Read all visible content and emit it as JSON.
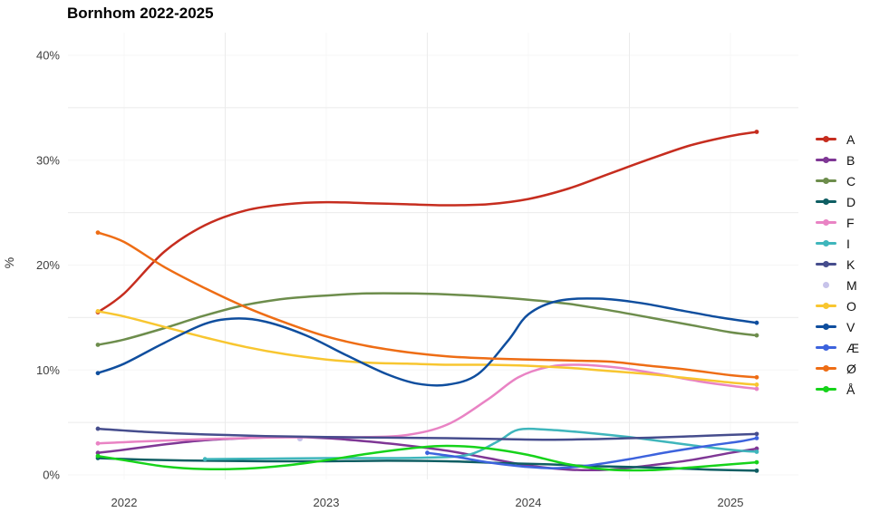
{
  "chart_data": {
    "type": "line",
    "title": "Bornhom 2022-2025",
    "xlabel": "",
    "ylabel": "%",
    "xlim": [
      2021.75,
      2025.33
    ],
    "ylim": [
      0,
      40
    ],
    "grid": "on",
    "legend_position": "right",
    "x_ticks": [
      {
        "value": 2022,
        "label": "2022"
      },
      {
        "value": 2023,
        "label": "2023"
      },
      {
        "value": 2024,
        "label": "2024"
      },
      {
        "value": 2025,
        "label": "2025"
      }
    ],
    "y_ticks": [
      {
        "value": 0,
        "label": "0%"
      },
      {
        "value": 10,
        "label": "10%"
      },
      {
        "value": 20,
        "label": "20%"
      },
      {
        "value": 30,
        "label": "30%"
      },
      {
        "value": 40,
        "label": "40%"
      }
    ],
    "minor_grid_y": [
      5,
      15,
      25,
      35
    ],
    "minor_grid_x": [
      2022.5,
      2023.5,
      2024.5
    ],
    "series": [
      {
        "name": "A",
        "color": "#c62d1f",
        "points": [
          [
            2021.87,
            15.5
          ],
          [
            2022.0,
            17.3
          ],
          [
            2022.2,
            21.3
          ],
          [
            2022.4,
            23.8
          ],
          [
            2022.6,
            25.2
          ],
          [
            2022.8,
            25.8
          ],
          [
            2023.0,
            26.0
          ],
          [
            2023.2,
            25.9
          ],
          [
            2023.4,
            25.8
          ],
          [
            2023.6,
            25.7
          ],
          [
            2023.8,
            25.8
          ],
          [
            2024.0,
            26.3
          ],
          [
            2024.2,
            27.3
          ],
          [
            2024.4,
            28.7
          ],
          [
            2024.6,
            30.1
          ],
          [
            2024.8,
            31.4
          ],
          [
            2025.0,
            32.3
          ],
          [
            2025.13,
            32.7
          ]
        ]
      },
      {
        "name": "B",
        "color": "#7f3795",
        "points": [
          [
            2021.87,
            2.1
          ],
          [
            2022.0,
            2.4
          ],
          [
            2022.2,
            2.9
          ],
          [
            2022.4,
            3.3
          ],
          [
            2022.6,
            3.5
          ],
          [
            2022.8,
            3.6
          ],
          [
            2023.0,
            3.5
          ],
          [
            2023.2,
            3.2
          ],
          [
            2023.4,
            2.8
          ],
          [
            2023.6,
            2.3
          ],
          [
            2023.8,
            1.6
          ],
          [
            2024.0,
            0.9
          ],
          [
            2024.2,
            0.5
          ],
          [
            2024.4,
            0.5
          ],
          [
            2024.6,
            0.9
          ],
          [
            2024.8,
            1.4
          ],
          [
            2025.0,
            2.1
          ],
          [
            2025.13,
            2.5
          ]
        ]
      },
      {
        "name": "C",
        "color": "#6d8d4c",
        "points": [
          [
            2021.87,
            12.4
          ],
          [
            2022.0,
            12.9
          ],
          [
            2022.2,
            14.0
          ],
          [
            2022.4,
            15.2
          ],
          [
            2022.6,
            16.2
          ],
          [
            2022.8,
            16.8
          ],
          [
            2023.0,
            17.1
          ],
          [
            2023.2,
            17.3
          ],
          [
            2023.4,
            17.3
          ],
          [
            2023.6,
            17.2
          ],
          [
            2023.8,
            17.0
          ],
          [
            2024.0,
            16.7
          ],
          [
            2024.2,
            16.3
          ],
          [
            2024.4,
            15.7
          ],
          [
            2024.6,
            15.0
          ],
          [
            2024.8,
            14.3
          ],
          [
            2025.0,
            13.6
          ],
          [
            2025.13,
            13.3
          ]
        ]
      },
      {
        "name": "D",
        "color": "#0f5e63",
        "points": [
          [
            2021.87,
            1.6
          ],
          [
            2022.1,
            1.45
          ],
          [
            2022.4,
            1.35
          ],
          [
            2022.7,
            1.3
          ],
          [
            2023.0,
            1.3
          ],
          [
            2023.3,
            1.35
          ],
          [
            2023.6,
            1.3
          ],
          [
            2023.9,
            1.1
          ],
          [
            2024.1,
            1.0
          ],
          [
            2024.3,
            0.85
          ],
          [
            2024.5,
            0.75
          ],
          [
            2024.7,
            0.65
          ],
          [
            2024.9,
            0.5
          ],
          [
            2025.13,
            0.4
          ]
        ]
      },
      {
        "name": "F",
        "color": "#e983c4",
        "points": [
          [
            2021.87,
            3.0
          ],
          [
            2022.1,
            3.2
          ],
          [
            2022.4,
            3.4
          ],
          [
            2022.7,
            3.55
          ],
          [
            2023.0,
            3.6
          ],
          [
            2023.2,
            3.6
          ],
          [
            2023.4,
            3.8
          ],
          [
            2023.6,
            4.8
          ],
          [
            2023.8,
            7.2
          ],
          [
            2023.95,
            9.3
          ],
          [
            2024.1,
            10.3
          ],
          [
            2024.25,
            10.5
          ],
          [
            2024.45,
            10.2
          ],
          [
            2024.65,
            9.6
          ],
          [
            2024.85,
            8.9
          ],
          [
            2025.0,
            8.5
          ],
          [
            2025.13,
            8.2
          ]
        ]
      },
      {
        "name": "I",
        "color": "#3fb6bc",
        "points": [
          [
            2022.4,
            1.5
          ],
          [
            2022.7,
            1.55
          ],
          [
            2023.0,
            1.6
          ],
          [
            2023.3,
            1.6
          ],
          [
            2023.5,
            1.65
          ],
          [
            2023.7,
            1.9
          ],
          [
            2023.85,
            3.2
          ],
          [
            2023.95,
            4.3
          ],
          [
            2024.1,
            4.3
          ],
          [
            2024.3,
            4.0
          ],
          [
            2024.5,
            3.6
          ],
          [
            2024.7,
            3.1
          ],
          [
            2024.9,
            2.6
          ],
          [
            2025.05,
            2.3
          ],
          [
            2025.13,
            2.2
          ]
        ]
      },
      {
        "name": "K",
        "color": "#464d8d",
        "points": [
          [
            2021.87,
            4.4
          ],
          [
            2022.1,
            4.1
          ],
          [
            2022.4,
            3.85
          ],
          [
            2022.7,
            3.7
          ],
          [
            2023.0,
            3.6
          ],
          [
            2023.3,
            3.55
          ],
          [
            2023.6,
            3.5
          ],
          [
            2023.9,
            3.4
          ],
          [
            2024.1,
            3.35
          ],
          [
            2024.3,
            3.4
          ],
          [
            2024.5,
            3.5
          ],
          [
            2024.7,
            3.6
          ],
          [
            2024.9,
            3.75
          ],
          [
            2025.13,
            3.9
          ]
        ]
      },
      {
        "name": "M",
        "color": "#c7c3ea",
        "marker_only": true,
        "points": [
          [
            2022.87,
            3.45
          ]
        ]
      },
      {
        "name": "O",
        "color": "#f8c630",
        "points": [
          [
            2021.87,
            15.6
          ],
          [
            2022.0,
            15.1
          ],
          [
            2022.2,
            14.1
          ],
          [
            2022.4,
            13.1
          ],
          [
            2022.6,
            12.2
          ],
          [
            2022.8,
            11.5
          ],
          [
            2023.0,
            11.0
          ],
          [
            2023.2,
            10.7
          ],
          [
            2023.4,
            10.6
          ],
          [
            2023.6,
            10.5
          ],
          [
            2023.8,
            10.5
          ],
          [
            2024.0,
            10.4
          ],
          [
            2024.2,
            10.2
          ],
          [
            2024.4,
            9.9
          ],
          [
            2024.6,
            9.6
          ],
          [
            2024.8,
            9.2
          ],
          [
            2025.0,
            8.8
          ],
          [
            2025.13,
            8.6
          ]
        ]
      },
      {
        "name": "V",
        "color": "#0f4e9e",
        "points": [
          [
            2021.87,
            9.7
          ],
          [
            2022.0,
            10.6
          ],
          [
            2022.2,
            12.6
          ],
          [
            2022.4,
            14.4
          ],
          [
            2022.55,
            14.9
          ],
          [
            2022.7,
            14.6
          ],
          [
            2022.9,
            13.3
          ],
          [
            2023.1,
            11.4
          ],
          [
            2023.3,
            9.6
          ],
          [
            2023.45,
            8.7
          ],
          [
            2023.6,
            8.6
          ],
          [
            2023.75,
            9.6
          ],
          [
            2023.9,
            12.8
          ],
          [
            2024.0,
            15.3
          ],
          [
            2024.15,
            16.6
          ],
          [
            2024.35,
            16.8
          ],
          [
            2024.55,
            16.4
          ],
          [
            2024.75,
            15.7
          ],
          [
            2024.95,
            15.0
          ],
          [
            2025.13,
            14.5
          ]
        ]
      },
      {
        "name": "Æ",
        "color": "#3d63dd",
        "points": [
          [
            2023.5,
            2.1
          ],
          [
            2023.65,
            1.7
          ],
          [
            2023.8,
            1.2
          ],
          [
            2024.0,
            0.75
          ],
          [
            2024.15,
            0.65
          ],
          [
            2024.3,
            0.9
          ],
          [
            2024.5,
            1.5
          ],
          [
            2024.7,
            2.2
          ],
          [
            2024.9,
            2.8
          ],
          [
            2025.05,
            3.2
          ],
          [
            2025.13,
            3.5
          ]
        ]
      },
      {
        "name": "Ø",
        "color": "#ee6d15",
        "points": [
          [
            2021.87,
            23.1
          ],
          [
            2022.0,
            22.2
          ],
          [
            2022.2,
            19.8
          ],
          [
            2022.4,
            17.8
          ],
          [
            2022.6,
            16.0
          ],
          [
            2022.8,
            14.5
          ],
          [
            2023.0,
            13.2
          ],
          [
            2023.2,
            12.3
          ],
          [
            2023.4,
            11.7
          ],
          [
            2023.6,
            11.3
          ],
          [
            2023.8,
            11.1
          ],
          [
            2024.0,
            11.0
          ],
          [
            2024.2,
            10.9
          ],
          [
            2024.4,
            10.8
          ],
          [
            2024.6,
            10.4
          ],
          [
            2024.8,
            10.0
          ],
          [
            2025.0,
            9.5
          ],
          [
            2025.13,
            9.3
          ]
        ]
      },
      {
        "name": "Å",
        "color": "#16d31a",
        "points": [
          [
            2021.87,
            1.8
          ],
          [
            2022.0,
            1.4
          ],
          [
            2022.2,
            0.8
          ],
          [
            2022.4,
            0.55
          ],
          [
            2022.6,
            0.6
          ],
          [
            2022.8,
            0.9
          ],
          [
            2023.0,
            1.4
          ],
          [
            2023.2,
            2.0
          ],
          [
            2023.4,
            2.5
          ],
          [
            2023.55,
            2.75
          ],
          [
            2023.7,
            2.7
          ],
          [
            2023.85,
            2.4
          ],
          [
            2024.0,
            1.9
          ],
          [
            2024.2,
            1.0
          ],
          [
            2024.4,
            0.5
          ],
          [
            2024.6,
            0.45
          ],
          [
            2024.8,
            0.7
          ],
          [
            2025.0,
            1.0
          ],
          [
            2025.13,
            1.2
          ]
        ]
      }
    ]
  }
}
